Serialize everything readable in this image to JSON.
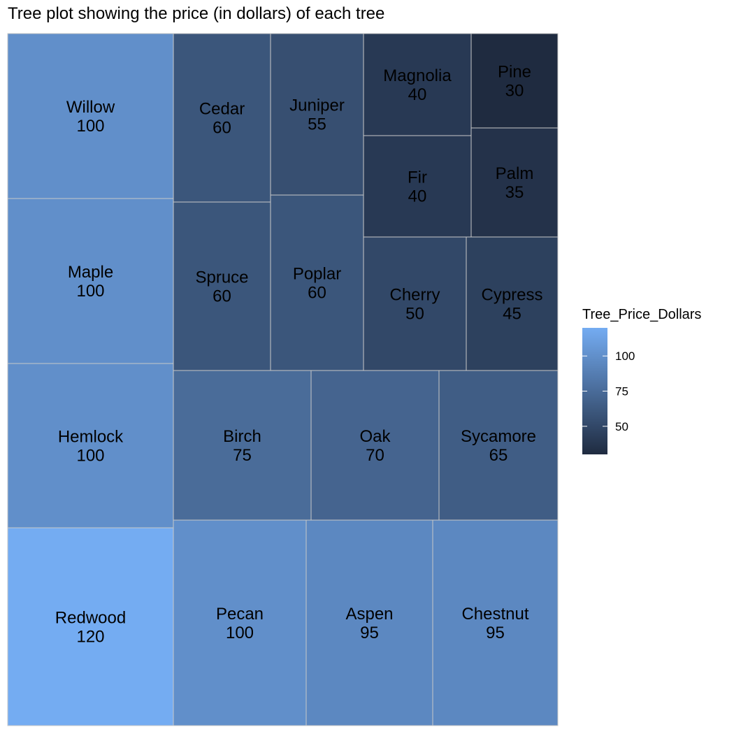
{
  "chart_data": {
    "type": "treemap",
    "title": "Tree plot showing the price (in dollars) of each tree",
    "legend": {
      "title": "Tree_Price_Dollars",
      "ticks": [
        50,
        75,
        100
      ],
      "range": [
        30,
        120
      ],
      "colors": {
        "low": "#1f2b40",
        "high": "#74acf2"
      },
      "placement": "right"
    },
    "items": [
      {
        "label": "Redwood",
        "value": 120
      },
      {
        "label": "Willow",
        "value": 100
      },
      {
        "label": "Maple",
        "value": 100
      },
      {
        "label": "Hemlock",
        "value": 100
      },
      {
        "label": "Pecan",
        "value": 100
      },
      {
        "label": "Aspen",
        "value": 95
      },
      {
        "label": "Chestnut",
        "value": 95
      },
      {
        "label": "Birch",
        "value": 75
      },
      {
        "label": "Oak",
        "value": 70
      },
      {
        "label": "Sycamore",
        "value": 65
      },
      {
        "label": "Cedar",
        "value": 60
      },
      {
        "label": "Spruce",
        "value": 60
      },
      {
        "label": "Poplar",
        "value": 60
      },
      {
        "label": "Juniper",
        "value": 55
      },
      {
        "label": "Cherry",
        "value": 50
      },
      {
        "label": "Cypress",
        "value": 45
      },
      {
        "label": "Magnolia",
        "value": 40
      },
      {
        "label": "Fir",
        "value": 40
      },
      {
        "label": "Palm",
        "value": 35
      },
      {
        "label": "Pine",
        "value": 30
      }
    ]
  }
}
